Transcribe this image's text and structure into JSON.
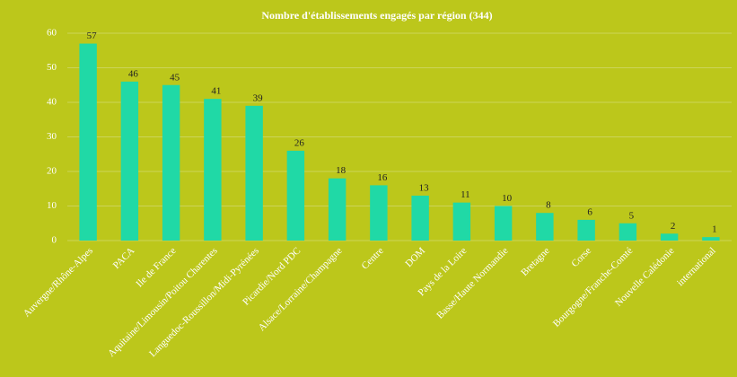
{
  "chart_data": {
    "type": "bar",
    "title": "Nombre d'établissements engagés par région (344)",
    "categories": [
      "Auvergne/Rhône-Alpes",
      "PACA",
      "Ile de France",
      "Aquitaine/Limousin/Poitou Charentes",
      "Languedoc-Roussillon/Midi-Pyrénées",
      "Picardie/Nord PDC",
      "Alsace/Lorraine/Champagne",
      "Centre",
      "DOM",
      "Pays de la Loire",
      "Basse/Haute Normandie",
      "Bretagne",
      "Corse",
      "Bourgogne/Franche-Comté",
      "Nouvelle Calédonie",
      "international"
    ],
    "values": [
      57,
      46,
      45,
      41,
      39,
      26,
      18,
      16,
      13,
      11,
      10,
      8,
      6,
      5,
      2,
      1
    ],
    "color": "#20d9a6",
    "ylim": [
      0,
      60
    ],
    "yticks": [
      0,
      10,
      20,
      30,
      40,
      50,
      60
    ],
    "grid": true
  }
}
